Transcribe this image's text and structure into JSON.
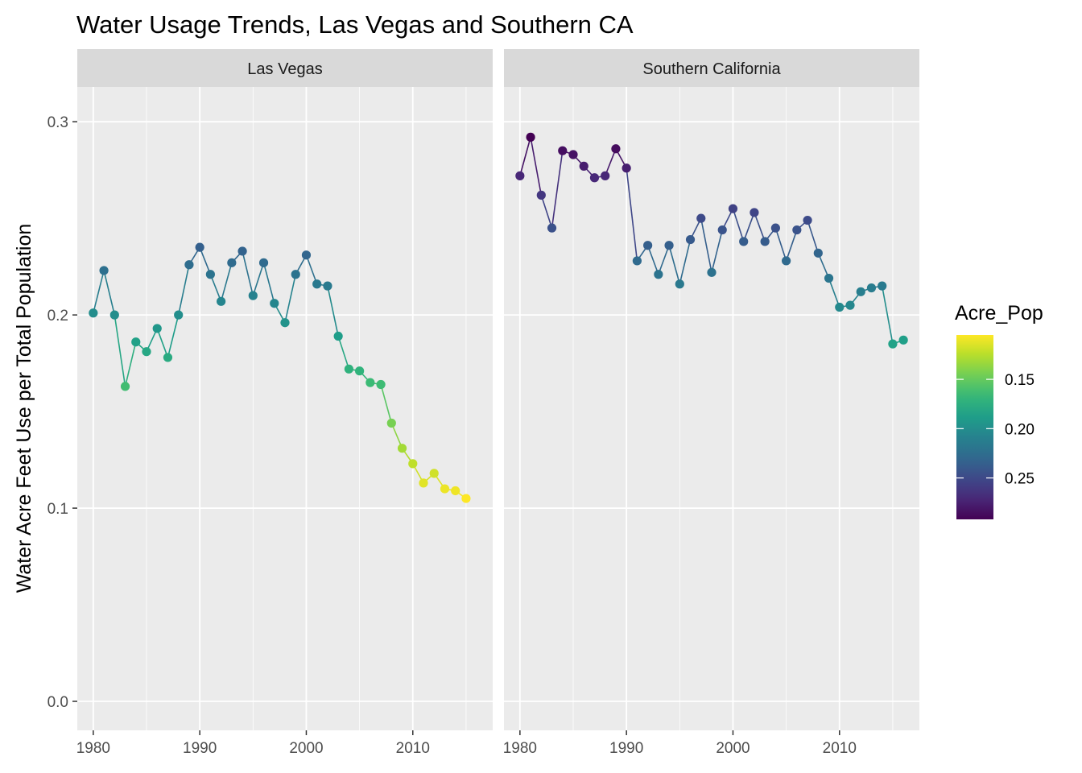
{
  "chart_data": {
    "type": "line",
    "title": "Water Usage Trends, Las Vegas and Southern CA",
    "xlabel": "",
    "ylabel": "Water Acre Feet Use per Total Population",
    "xlim": [
      1978.5,
      2017.5
    ],
    "ylim": [
      -0.015,
      0.318
    ],
    "x_ticks": [
      1980,
      1990,
      2000,
      2010
    ],
    "x_tick_labels": [
      "1980",
      "1990",
      "2000",
      "2010"
    ],
    "y_ticks": [
      0.0,
      0.1,
      0.2,
      0.3
    ],
    "y_tick_labels": [
      "0.0",
      "0.1",
      "0.2",
      "0.3"
    ],
    "grid": true,
    "markers": "points",
    "color_scale": {
      "name": "Acre_Pop",
      "palette": "viridis",
      "reversed": true,
      "range": [
        0.105,
        0.292
      ],
      "ticks": [
        0.15,
        0.2,
        0.25
      ],
      "tick_labels": [
        "0.15",
        "0.20",
        "0.25"
      ],
      "legend_position": "right"
    },
    "facets": [
      {
        "label": "Las Vegas",
        "x": [
          1980,
          1981,
          1982,
          1983,
          1984,
          1985,
          1986,
          1987,
          1988,
          1989,
          1990,
          1991,
          1992,
          1993,
          1994,
          1995,
          1996,
          1997,
          1998,
          1999,
          2000,
          2001,
          2002,
          2003,
          2004,
          2005,
          2006,
          2007,
          2008,
          2009,
          2010,
          2011,
          2012,
          2013,
          2014,
          2015
        ],
        "y": [
          0.201,
          0.223,
          0.2,
          0.163,
          0.186,
          0.181,
          0.193,
          0.178,
          0.2,
          0.226,
          0.235,
          0.221,
          0.207,
          0.227,
          0.233,
          0.21,
          0.227,
          0.206,
          0.196,
          0.221,
          0.231,
          0.216,
          0.215,
          0.189,
          0.172,
          0.171,
          0.165,
          0.164,
          0.144,
          0.131,
          0.123,
          0.113,
          0.118,
          0.11,
          0.109,
          0.105
        ]
      },
      {
        "label": "Southern California",
        "x": [
          1980,
          1981,
          1982,
          1983,
          1984,
          1985,
          1986,
          1987,
          1988,
          1989,
          1990,
          1991,
          1992,
          1993,
          1994,
          1995,
          1996,
          1997,
          1998,
          1999,
          2000,
          2001,
          2002,
          2003,
          2004,
          2005,
          2006,
          2007,
          2008,
          2009,
          2010,
          2011,
          2012,
          2013,
          2014,
          2015,
          2016
        ],
        "y": [
          0.272,
          0.292,
          0.262,
          0.245,
          0.285,
          0.283,
          0.277,
          0.271,
          0.272,
          0.286,
          0.276,
          0.228,
          0.236,
          0.221,
          0.236,
          0.216,
          0.239,
          0.25,
          0.222,
          0.244,
          0.255,
          0.238,
          0.253,
          0.238,
          0.245,
          0.228,
          0.244,
          0.249,
          0.232,
          0.219,
          0.204,
          0.205,
          0.212,
          0.214,
          0.215,
          0.185,
          0.187
        ]
      }
    ]
  }
}
